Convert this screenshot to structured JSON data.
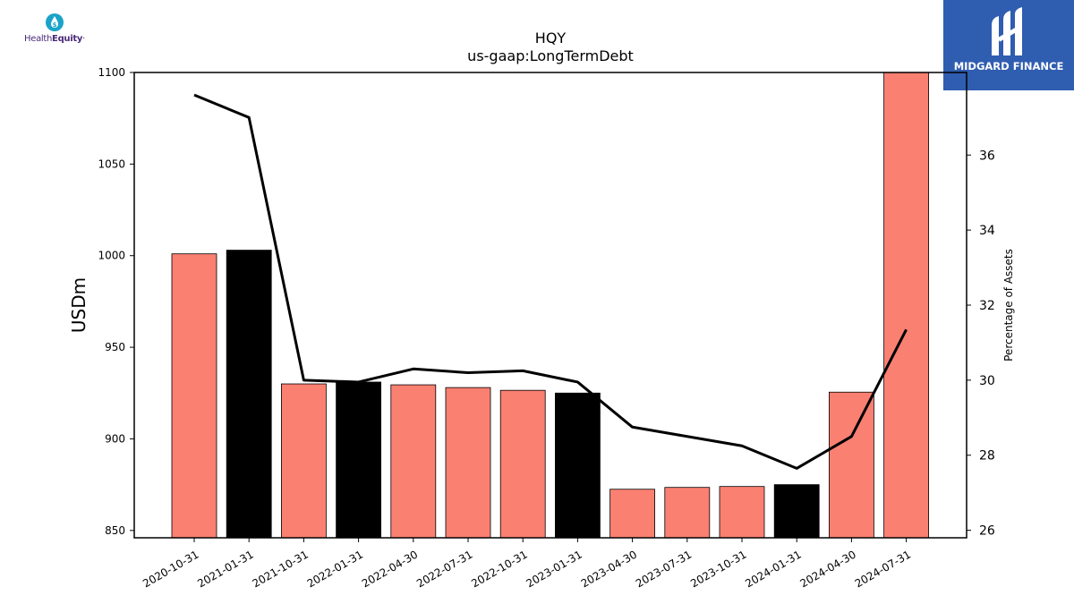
{
  "logos": {
    "left": {
      "text_regular": "Health",
      "text_bold": "Equity",
      "tm": "·",
      "icon": "dollar-drop-icon",
      "color": "#1aa3c9"
    },
    "right": {
      "text": "MIDGARD FINANCE",
      "icon": "midgard-finance-icon",
      "bg_color": "#2f5db0"
    }
  },
  "chart_data": {
    "type": "bar",
    "title": "HQY",
    "subtitle": "us-gaap:LongTermDebt",
    "ylabel": "USDm",
    "y2label": "Percentage of Assets",
    "ylim": [
      846,
      1100
    ],
    "y2lim": [
      25.8,
      38.2
    ],
    "yticks": [
      850,
      900,
      950,
      1000,
      1050,
      1100
    ],
    "y2ticks": [
      26,
      28,
      30,
      32,
      34,
      36
    ],
    "categories": [
      "2020-10-31",
      "2021-01-31",
      "2021-10-31",
      "2022-01-31",
      "2022-04-30",
      "2022-07-31",
      "2022-10-31",
      "2023-01-31",
      "2023-04-30",
      "2023-07-31",
      "2023-10-31",
      "2024-01-31",
      "2024-04-30",
      "2024-07-31"
    ],
    "series": [
      {
        "type": "bar",
        "values": [
          1001,
          1003,
          930,
          931,
          929.5,
          928,
          926.5,
          925,
          872.5,
          873.5,
          874,
          875,
          925.5,
          1110
        ],
        "colors": [
          "#fa8072",
          "#000000",
          "#fa8072",
          "#000000",
          "#fa8072",
          "#fa8072",
          "#fa8072",
          "#000000",
          "#fa8072",
          "#fa8072",
          "#fa8072",
          "#000000",
          "#fa8072",
          "#fa8072"
        ]
      },
      {
        "type": "line",
        "axis": "right",
        "color": "#000000",
        "values": [
          37.6,
          37.0,
          30.0,
          29.95,
          30.3,
          30.2,
          30.25,
          29.95,
          28.75,
          28.5,
          28.25,
          27.65,
          28.5,
          31.35
        ]
      }
    ],
    "grid": false,
    "legend": "none"
  }
}
